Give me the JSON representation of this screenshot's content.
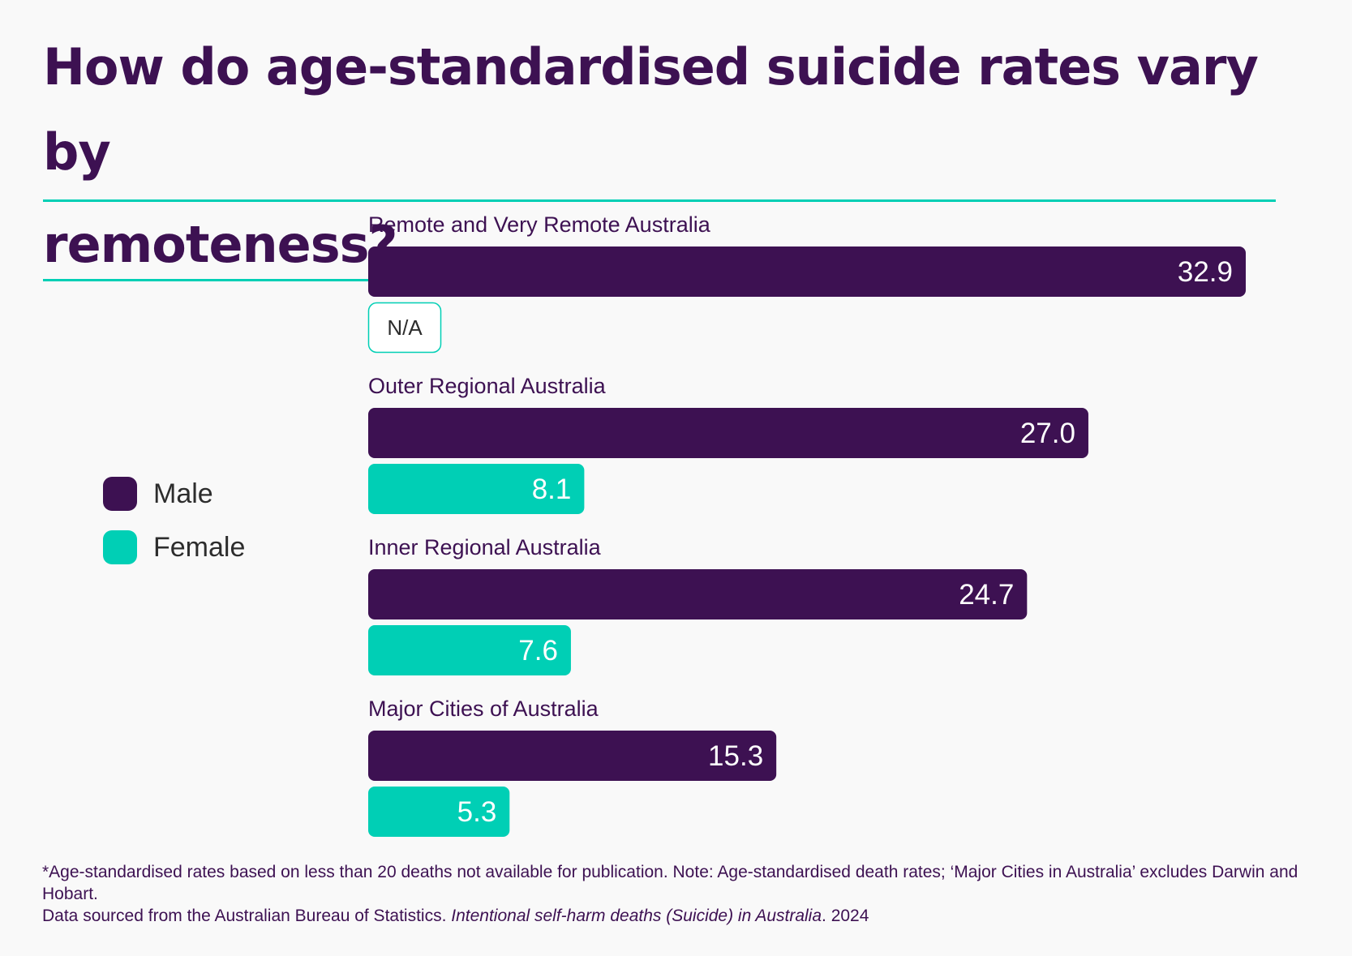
{
  "title": {
    "line1": "How do age-standardised suicide rates vary by",
    "line2": "remoteness?"
  },
  "legend": {
    "male_label": "Male",
    "female_label": "Female"
  },
  "colors": {
    "male": "#3d1152",
    "female": "#00cfb5",
    "background": "#f9f9f9"
  },
  "na_label": "N/A",
  "chart_data": {
    "type": "bar",
    "orientation": "horizontal",
    "categories": [
      "Remote and Very Remote Australia",
      "Outer Regional Australia",
      "Inner Regional Australia",
      "Major Cities of Australia"
    ],
    "series": [
      {
        "name": "Male",
        "values": [
          32.9,
          27.0,
          24.7,
          15.3
        ],
        "labels": [
          "32.9",
          "27.0",
          "24.7",
          "15.3"
        ]
      },
      {
        "name": "Female",
        "values": [
          null,
          8.1,
          7.6,
          5.3
        ],
        "labels": [
          "N/A",
          "8.1",
          "7.6",
          "5.3"
        ]
      }
    ],
    "xlim": [
      0,
      32.9
    ],
    "grid": false,
    "legend_position": "left"
  },
  "footnote": {
    "line1": "*Age-standardised rates based on less than 20 deaths not available for publication. Note: Age-standardised death rates; ‘Major Cities in Australia’ excludes Darwin and Hobart.",
    "line2_prefix": "Data sourced from the Australian Bureau of Statistics. ",
    "line2_title": "Intentional self-harm deaths (Suicide) in Australia",
    "line2_suffix": ". 2024"
  }
}
